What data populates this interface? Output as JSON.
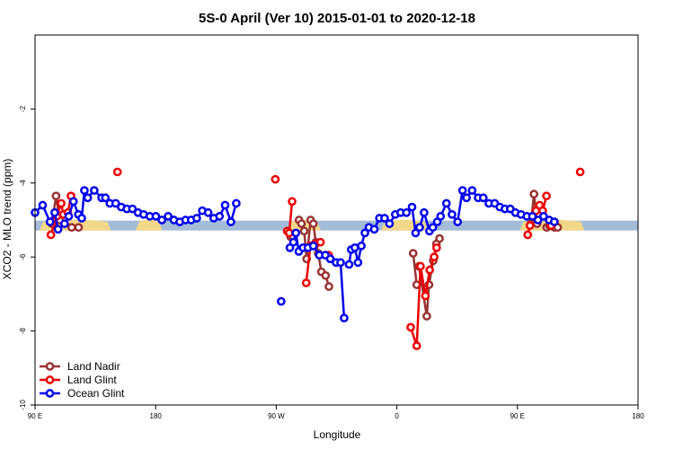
{
  "chart_data": {
    "type": "line",
    "title": "5S-0 April (Ver 10)   2015-01-01 to 2020-12-18",
    "xlabel": "Longitude",
    "ylabel": "XCO2 - MLO trend (ppm)",
    "xlim": [
      -90,
      180
    ],
    "ylim": [
      -10,
      0
    ],
    "x_ticks": [
      {
        "value": -90,
        "label": "90 E"
      },
      {
        "value": -36,
        "label": "180"
      },
      {
        "value": 18,
        "label": "90 W"
      },
      {
        "value": 72,
        "label": "0"
      },
      {
        "value": 126,
        "label": "90 E"
      },
      {
        "value": 180,
        "label": "180"
      }
    ],
    "y_ticks": [
      {
        "value": -2,
        "label": "-2"
      },
      {
        "value": -4,
        "label": "-4"
      },
      {
        "value": -6,
        "label": "-6"
      },
      {
        "value": -8,
        "label": "-8"
      },
      {
        "value": -10,
        "label": "-10"
      }
    ],
    "grid": false,
    "legend_position": "bottom-left",
    "band": {
      "y": -5.15,
      "ocean_color": "#a4bcd8",
      "land_color": "#f2d888",
      "land_segments": [
        [
          -88,
          -56
        ],
        [
          -45,
          -33
        ],
        [
          23,
          38
        ],
        [
          65,
          86
        ],
        [
          127,
          156
        ]
      ]
    },
    "series": [
      {
        "name": "Land Nadir",
        "color": "#993333",
        "segments": [
          [
            [
              -82.4,
              -5.1
            ],
            [
              -80.6,
              -4.35
            ],
            [
              -79,
              -5.0
            ]
          ],
          [
            [
              -73.6,
              -5.2
            ],
            [
              -70.5,
              -5.2
            ]
          ],
          [
            [
              24.4,
              -5.45
            ],
            [
              25.5,
              -5.45
            ]
          ],
          [
            [
              28.2,
              -5.0
            ],
            [
              29.3,
              -5.1
            ],
            [
              30.5,
              -5.3
            ],
            [
              31.6,
              -6.05
            ],
            [
              33.4,
              -5.0
            ],
            [
              34.6,
              -5.1
            ],
            [
              35.7,
              -5.6
            ],
            [
              36.8,
              -5.9
            ],
            [
              38.2,
              -6.4
            ],
            [
              40.1,
              -6.5
            ],
            [
              41.6,
              -6.8
            ]
          ],
          [
            [
              79.3,
              -5.9
            ],
            [
              80.9,
              -6.75
            ]
          ],
          [
            [
              81.9,
              -6.25
            ],
            [
              85.4,
              -7.6
            ],
            [
              86.4,
              -6.75
            ],
            [
              88.3,
              -6.1
            ],
            [
              89.7,
              -5.65
            ],
            [
              91.1,
              -5.5
            ]
          ],
          [
            [
              132,
              -5.1
            ],
            [
              133.4,
              -4.3
            ],
            [
              134.8,
              -5.1
            ]
          ],
          [
            [
              139.1,
              -5.2
            ],
            [
              140.3,
              -5.15
            ]
          ],
          [
            [
              142.6,
              -5.2
            ],
            [
              144,
              -5.2
            ]
          ]
        ]
      },
      {
        "name": "Land Glint",
        "color": "#ee0000",
        "segments": [
          [
            [
              -82.9,
              -5.4
            ],
            [
              -80.2,
              -4.9
            ],
            [
              -78.3,
              -4.55
            ],
            [
              -77.3,
              -4.85
            ],
            [
              -75.3,
              -4.8
            ],
            [
              -73.9,
              -4.35
            ]
          ],
          [
            [
              -53.1,
              -3.7
            ]
          ],
          [
            [
              17.6,
              -3.9
            ]
          ],
          [
            [
              22.9,
              -5.3
            ],
            [
              23.8,
              -5.35
            ],
            [
              25.1,
              -4.5
            ]
          ],
          [
            [
              31.4,
              -6.7
            ],
            [
              33.3,
              -5.7
            ],
            [
              35.5,
              -5.65
            ],
            [
              37.8,
              -5.6
            ]
          ],
          [
            [
              41.4,
              -5.95
            ]
          ],
          [
            [
              78.2,
              -7.9
            ],
            [
              80.9,
              -8.4
            ],
            [
              82.6,
              -6.25
            ],
            [
              84.8,
              -7.05
            ],
            [
              86.7,
              -6.35
            ],
            [
              88.7,
              -6.0
            ],
            [
              89.8,
              -5.75
            ]
          ],
          [
            [
              130.6,
              -5.4
            ],
            [
              131.6,
              -5.15
            ]
          ],
          [
            [
              134.3,
              -4.75
            ],
            [
              135.9,
              -4.6
            ],
            [
              137.3,
              -4.75
            ],
            [
              139,
              -4.35
            ]
          ],
          [
            [
              141.1,
              -5.15
            ],
            [
              142.6,
              -5.05
            ]
          ],
          [
            [
              154.1,
              -3.7
            ]
          ]
        ]
      },
      {
        "name": "Ocean Glint",
        "color": "#0000ee",
        "segments": [
          [
            [
              -90,
              -4.8
            ],
            [
              -86.6,
              -4.6
            ],
            [
              -83.3,
              -5.05
            ],
            [
              -81.2,
              -4.8
            ],
            [
              -79.7,
              -5.25
            ],
            [
              -76.8,
              -5.1
            ],
            [
              -74.9,
              -4.9
            ],
            [
              -72.8,
              -4.5
            ],
            [
              -70.6,
              -4.85
            ],
            [
              -69.1,
              -4.95
            ],
            [
              -67.9,
              -4.2
            ],
            [
              -66.4,
              -4.4
            ],
            [
              -63.5,
              -4.2
            ],
            [
              -60.2,
              -4.4
            ],
            [
              -58.5,
              -4.4
            ],
            [
              -56.5,
              -4.55
            ],
            [
              -53.9,
              -4.55
            ],
            [
              -51.4,
              -4.65
            ],
            [
              -48.9,
              -4.7
            ],
            [
              -46.4,
              -4.7
            ],
            [
              -43.9,
              -4.8
            ],
            [
              -41.4,
              -4.85
            ],
            [
              -38.6,
              -4.9
            ],
            [
              -35.9,
              -4.9
            ],
            [
              -33.2,
              -5.0
            ],
            [
              -30.4,
              -4.9
            ],
            [
              -27.8,
              -5.0
            ],
            [
              -25.2,
              -5.05
            ],
            [
              -22.6,
              -5.0
            ],
            [
              -20.1,
              -5.0
            ],
            [
              -17.6,
              -4.95
            ],
            [
              -15.1,
              -4.75
            ],
            [
              -12.5,
              -4.8
            ],
            [
              -10,
              -4.95
            ],
            [
              -7.4,
              -4.9
            ],
            [
              -4.9,
              -4.6
            ],
            [
              -2.3,
              -5.05
            ],
            [
              0.1,
              -4.55
            ]
          ],
          [
            [
              20.2,
              -7.2
            ]
          ],
          [
            [
              24.1,
              -5.75
            ],
            [
              25.7,
              -5.6
            ],
            [
              26.8,
              -5.35
            ],
            [
              28.1,
              -5.85
            ],
            [
              30,
              -5.75
            ],
            [
              32.2,
              -5.75
            ],
            [
              34.6,
              -5.7
            ],
            [
              37.3,
              -5.95
            ],
            [
              40,
              -5.95
            ],
            [
              42.2,
              -6.05
            ],
            [
              44.8,
              -6.15
            ],
            [
              46.8,
              -6.15
            ],
            [
              48.4,
              -7.65
            ]
          ],
          [
            [
              50.6,
              -6.2
            ],
            [
              51.6,
              -5.8
            ],
            [
              53.2,
              -5.75
            ],
            [
              54.6,
              -6.15
            ],
            [
              56.1,
              -5.7
            ],
            [
              57.7,
              -5.35
            ],
            [
              59.5,
              -5.2
            ],
            [
              61.9,
              -5.25
            ],
            [
              64.2,
              -4.95
            ],
            [
              66.5,
              -4.95
            ],
            [
              68.7,
              -5.1
            ],
            [
              71.3,
              -4.85
            ],
            [
              73.7,
              -4.8
            ],
            [
              76.3,
              -4.8
            ],
            [
              78.8,
              -4.65
            ],
            [
              80.4,
              -5.35
            ],
            [
              82.2,
              -5.2
            ],
            [
              84.2,
              -4.8
            ],
            [
              86.6,
              -5.3
            ],
            [
              88.1,
              -5.2
            ],
            [
              90.1,
              -5.05
            ],
            [
              91.6,
              -4.9
            ],
            [
              94.2,
              -4.55
            ],
            [
              96.7,
              -4.85
            ],
            [
              99.2,
              -5.05
            ],
            [
              101.4,
              -4.2
            ],
            [
              103.2,
              -4.4
            ],
            [
              105.7,
              -4.2
            ],
            [
              108.4,
              -4.4
            ],
            [
              110.7,
              -4.4
            ],
            [
              113.2,
              -4.55
            ],
            [
              115.8,
              -4.55
            ],
            [
              118.1,
              -4.65
            ],
            [
              120.4,
              -4.7
            ],
            [
              122.8,
              -4.7
            ],
            [
              125.1,
              -4.8
            ],
            [
              127.6,
              -4.85
            ],
            [
              130.2,
              -4.9
            ],
            [
              132.7,
              -4.9
            ],
            [
              135.2,
              -5.0
            ],
            [
              137.7,
              -4.9
            ],
            [
              140.2,
              -5.0
            ],
            [
              142.5,
              -5.05
            ]
          ]
        ]
      }
    ]
  }
}
